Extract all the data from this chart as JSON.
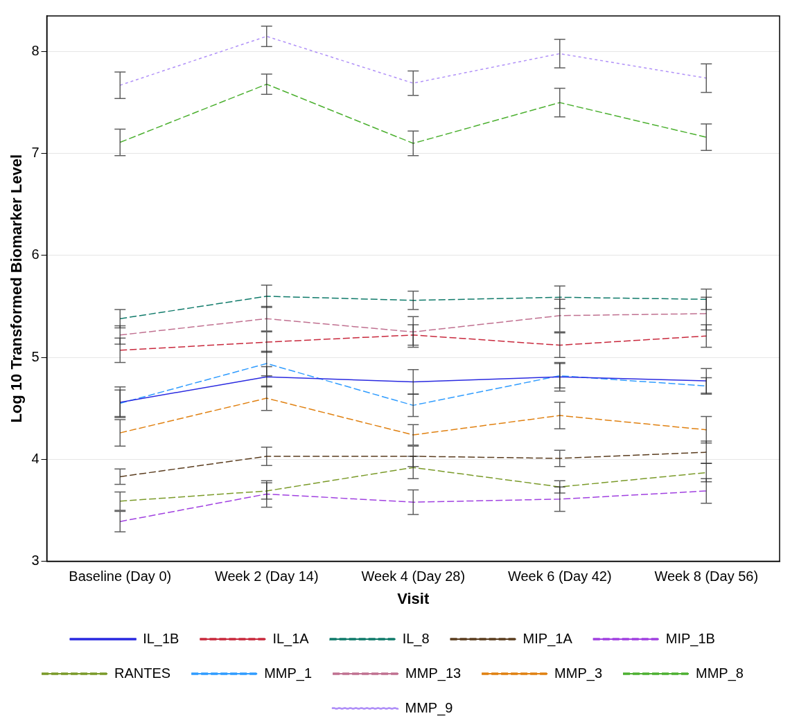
{
  "chart_data": {
    "type": "line",
    "xlabel": "Visit",
    "ylabel": "Log 10 Transformed Biomarker Level",
    "categories": [
      "Baseline (Day 0)",
      "Week 2 (Day 14)",
      "Week 4 (Day 28)",
      "Week 6 (Day 42)",
      "Week 8 (Day 56)"
    ],
    "ylim": [
      3,
      8.35
    ],
    "yticks": [
      3,
      4,
      5,
      6,
      7,
      8
    ],
    "grid": "y",
    "legend": "bottom",
    "marker": "none",
    "series": [
      {
        "name": "IL_1B",
        "color": "#2a2ae0",
        "line_style": "solid",
        "values": [
          4.56,
          4.81,
          4.76,
          4.81,
          4.77
        ],
        "errors": [
          0.15,
          0.1,
          0.12,
          0.14,
          0.12
        ]
      },
      {
        "name": "IL_1A",
        "color": "#c8283c",
        "line_style": "dashed",
        "values": [
          5.07,
          5.15,
          5.22,
          5.12,
          5.21
        ],
        "errors": [
          0.12,
          0.1,
          0.1,
          0.12,
          0.11
        ]
      },
      {
        "name": "IL_8",
        "color": "#0f7a6a",
        "line_style": "dashed",
        "values": [
          5.38,
          5.6,
          5.56,
          5.59,
          5.57
        ],
        "errors": [
          0.09,
          0.11,
          0.09,
          0.11,
          0.1
        ]
      },
      {
        "name": "MIP_1A",
        "color": "#5a3c1e",
        "line_style": "dashed",
        "values": [
          3.83,
          4.03,
          4.03,
          4.01,
          4.07
        ],
        "errors": [
          0.075,
          0.09,
          0.1,
          0.08,
          0.11
        ]
      },
      {
        "name": "MIP_1B",
        "color": "#a040e0",
        "line_style": "dashed",
        "values": [
          3.39,
          3.66,
          3.58,
          3.61,
          3.69
        ],
        "errors": [
          0.1,
          0.13,
          0.12,
          0.12,
          0.12
        ]
      },
      {
        "name": "RANTES",
        "color": "#7a9a28",
        "line_style": "dashed",
        "values": [
          3.59,
          3.69,
          3.92,
          3.73,
          3.87
        ],
        "errors": [
          0.09,
          0.08,
          0.11,
          0.06,
          0.09
        ]
      },
      {
        "name": "MMP_1",
        "color": "#2f9cff",
        "line_style": "dashed",
        "values": [
          4.55,
          4.94,
          4.53,
          4.82,
          4.72
        ],
        "errors": [
          0.13,
          0.12,
          0.11,
          0.12,
          0.08
        ]
      },
      {
        "name": "MMP_13",
        "color": "#c07090",
        "line_style": "dashed",
        "values": [
          5.22,
          5.38,
          5.25,
          5.41,
          5.43
        ],
        "errors": [
          0.09,
          0.12,
          0.15,
          0.16,
          0.16
        ]
      },
      {
        "name": "MMP_3",
        "color": "#e08010",
        "line_style": "dashed",
        "values": [
          4.26,
          4.6,
          4.24,
          4.43,
          4.29
        ],
        "errors": [
          0.13,
          0.12,
          0.1,
          0.13,
          0.13
        ]
      },
      {
        "name": "MMP_8",
        "color": "#4cb030",
        "line_style": "dashed",
        "values": [
          7.11,
          7.68,
          7.1,
          7.5,
          7.16
        ],
        "errors": [
          0.13,
          0.1,
          0.12,
          0.14,
          0.13
        ]
      },
      {
        "name": "MMP_9",
        "color": "#b090f8",
        "line_style": "dotted",
        "values": [
          7.67,
          8.15,
          7.69,
          7.98,
          7.74
        ],
        "errors": [
          0.13,
          0.1,
          0.12,
          0.14,
          0.14
        ]
      }
    ]
  }
}
